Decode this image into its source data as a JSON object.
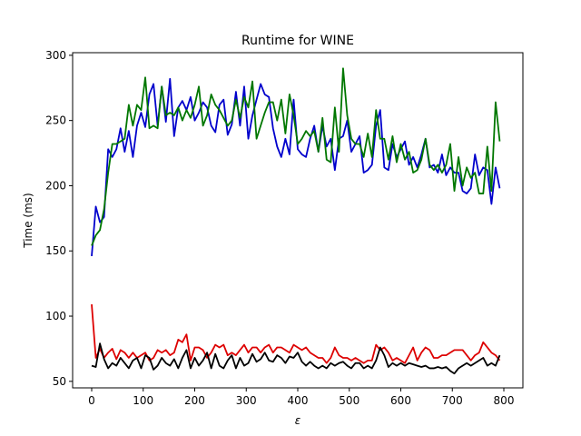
{
  "chart_data": {
    "type": "line",
    "title": "Runtime for WINE",
    "xlabel": "ε",
    "ylabel": "Time (ms)",
    "xlim": [
      -37,
      837
    ],
    "ylim": [
      45,
      302
    ],
    "xticks": [
      0,
      100,
      200,
      300,
      400,
      500,
      600,
      700,
      800
    ],
    "yticks": [
      50,
      100,
      150,
      200,
      250,
      300
    ],
    "xtick_labels": [
      "0",
      "100",
      "200",
      "300",
      "400",
      "500",
      "600",
      "700",
      "800"
    ],
    "ytick_labels": [
      "50",
      "100",
      "150",
      "200",
      "250",
      "300"
    ],
    "grid": false,
    "x": [
      0,
      8,
      16,
      24,
      32,
      40,
      48,
      56,
      64,
      72,
      80,
      88,
      96,
      104,
      112,
      120,
      128,
      136,
      144,
      152,
      160,
      168,
      176,
      184,
      192,
      200,
      208,
      216,
      224,
      232,
      240,
      248,
      256,
      264,
      272,
      280,
      288,
      296,
      304,
      312,
      320,
      328,
      336,
      344,
      352,
      360,
      368,
      376,
      384,
      392,
      400,
      408,
      416,
      424,
      432,
      440,
      448,
      456,
      464,
      472,
      480,
      488,
      496,
      504,
      512,
      520,
      528,
      536,
      544,
      552,
      560,
      568,
      576,
      584,
      592,
      600,
      608,
      616,
      624,
      632,
      640,
      648,
      656,
      664,
      672,
      680,
      688,
      696,
      704,
      712,
      720,
      728,
      736,
      744,
      752,
      760,
      768,
      776,
      784,
      792
    ],
    "series": [
      {
        "color": "#0000cc",
        "values": [
          146,
          184,
          172,
          176,
          228,
          222,
          228,
          244,
          226,
          242,
          222,
          246,
          256,
          245,
          270,
          278,
          246,
          276,
          249,
          282,
          238,
          260,
          265,
          258,
          268,
          250,
          256,
          264,
          260,
          246,
          241,
          262,
          266,
          239,
          247,
          272,
          246,
          276,
          236,
          254,
          266,
          278,
          270,
          268,
          244,
          230,
          222,
          236,
          224,
          266,
          228,
          224,
          222,
          236,
          246,
          226,
          246,
          230,
          236,
          212,
          236,
          238,
          250,
          226,
          232,
          238,
          210,
          212,
          216,
          246,
          258,
          214,
          212,
          232,
          222,
          228,
          234,
          216,
          222,
          214,
          224,
          236,
          214,
          216,
          210,
          224,
          208,
          214,
          210,
          210,
          196,
          194,
          198,
          224,
          208,
          214,
          212,
          186,
          214,
          198
        ]
      },
      {
        "color": "#007700",
        "values": [
          154,
          162,
          166,
          182,
          210,
          232,
          232,
          234,
          236,
          262,
          246,
          262,
          258,
          283,
          244,
          246,
          244,
          276,
          254,
          256,
          254,
          260,
          250,
          258,
          252,
          262,
          276,
          246,
          254,
          270,
          262,
          258,
          252,
          246,
          250,
          266,
          252,
          268,
          260,
          280,
          236,
          246,
          256,
          264,
          264,
          250,
          266,
          240,
          270,
          254,
          232,
          236,
          242,
          238,
          242,
          226,
          252,
          220,
          218,
          260,
          226,
          290,
          254,
          236,
          232,
          232,
          222,
          240,
          222,
          258,
          236,
          236,
          220,
          238,
          218,
          232,
          220,
          226,
          210,
          212,
          220,
          236,
          216,
          212,
          216,
          210,
          216,
          232,
          196,
          222,
          200,
          214,
          206,
          210,
          194,
          194,
          230,
          196,
          264,
          234
        ]
      },
      {
        "color": "#dd0000",
        "values": [
          109,
          68,
          75,
          68,
          72,
          75,
          67,
          74,
          72,
          68,
          72,
          68,
          70,
          72,
          66,
          68,
          74,
          72,
          74,
          70,
          72,
          82,
          80,
          86,
          66,
          76,
          76,
          74,
          68,
          72,
          78,
          76,
          78,
          70,
          72,
          70,
          74,
          78,
          72,
          76,
          76,
          72,
          76,
          78,
          72,
          76,
          76,
          74,
          72,
          78,
          76,
          74,
          76,
          72,
          70,
          68,
          68,
          64,
          68,
          76,
          70,
          68,
          68,
          66,
          68,
          66,
          64,
          66,
          66,
          78,
          74,
          76,
          72,
          66,
          68,
          66,
          64,
          70,
          76,
          66,
          72,
          76,
          74,
          68,
          68,
          70,
          70,
          72,
          74,
          74,
          74,
          70,
          66,
          70,
          72,
          80,
          76,
          72,
          70,
          66
        ]
      },
      {
        "color": "#000000",
        "values": [
          62,
          61,
          79,
          67,
          60,
          64,
          62,
          68,
          64,
          60,
          66,
          68,
          60,
          70,
          68,
          59,
          62,
          68,
          64,
          62,
          67,
          60,
          68,
          74,
          60,
          68,
          62,
          66,
          72,
          60,
          71,
          62,
          60,
          66,
          70,
          60,
          68,
          62,
          64,
          71,
          65,
          67,
          72,
          66,
          65,
          70,
          68,
          64,
          69,
          68,
          72,
          65,
          62,
          65,
          62,
          60,
          62,
          60,
          64,
          62,
          64,
          65,
          62,
          60,
          64,
          64,
          60,
          62,
          60,
          66,
          76,
          70,
          61,
          64,
          62,
          64,
          62,
          64,
          63,
          62,
          61,
          62,
          60,
          60,
          61,
          60,
          61,
          58,
          56,
          60,
          62,
          64,
          62,
          64,
          66,
          68,
          62,
          64,
          62,
          70
        ]
      }
    ]
  }
}
